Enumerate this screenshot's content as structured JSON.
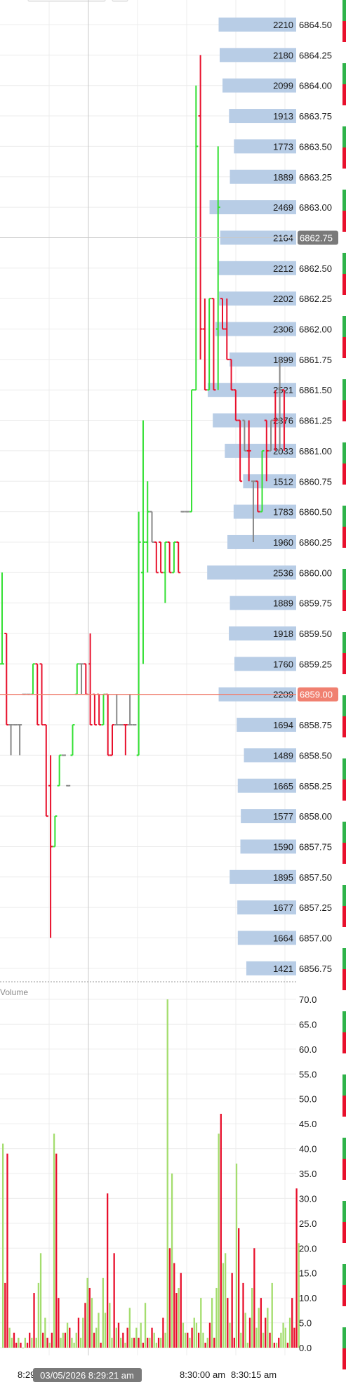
{
  "chart_data": [
    {
      "type": "price-ladder",
      "price_levels": [
        "6864.50",
        "6864.25",
        "6864.00",
        "6863.75",
        "6863.50",
        "6863.25",
        "6863.00",
        "6862.75",
        "6862.50",
        "6862.25",
        "6862.00",
        "6861.75",
        "6861.50",
        "6861.25",
        "6861.00",
        "6860.75",
        "6860.50",
        "6860.25",
        "6860.00",
        "6859.75",
        "6859.50",
        "6859.25",
        "6859.00",
        "6858.75",
        "6858.50",
        "6858.25",
        "6858.00",
        "6857.75",
        "6857.50",
        "6857.25",
        "6857.00",
        "6856.75"
      ],
      "volume_profile": [
        2210,
        2180,
        2099,
        1913,
        1773,
        1889,
        2469,
        2164,
        2212,
        2202,
        2306,
        1899,
        2521,
        2376,
        2033,
        1512,
        1783,
        1960,
        2536,
        1889,
        1918,
        1760,
        2209,
        1694,
        1489,
        1665,
        1577,
        1590,
        1895,
        1677,
        1664,
        1421
      ],
      "crosshair_price": "6862.75",
      "last_price": "6859.00",
      "price_range": [
        6856.75,
        6864.5
      ],
      "price_bars": [
        {
          "o": 6859.25,
          "h": 6860.0,
          "l": 6859.25,
          "c": 6859.25,
          "dir": "up"
        },
        {
          "o": 6859.5,
          "h": 6859.5,
          "l": 6858.75,
          "c": 6858.75,
          "dir": "down"
        },
        {
          "o": 6858.75,
          "h": 6858.75,
          "l": 6858.5,
          "c": 6858.75,
          "dir": "flat"
        },
        {
          "o": 6858.75,
          "h": 6858.75,
          "l": 6858.75,
          "c": 6858.75,
          "dir": "flat"
        },
        {
          "o": 6858.75,
          "h": 6858.75,
          "l": 6858.5,
          "c": 6858.75,
          "dir": "flat"
        },
        {
          "o": 6859.0,
          "h": 6859.0,
          "l": 6859.0,
          "c": 6859.0,
          "dir": "flat"
        },
        {
          "o": 6859.0,
          "h": 6859.0,
          "l": 6859.0,
          "c": 6859.0,
          "dir": "flat"
        },
        {
          "o": 6859.0,
          "h": 6859.25,
          "l": 6859.0,
          "c": 6859.25,
          "dir": "up"
        },
        {
          "o": 6859.25,
          "h": 6859.25,
          "l": 6858.75,
          "c": 6858.75,
          "dir": "down"
        },
        {
          "o": 6859.25,
          "h": 6859.25,
          "l": 6858.75,
          "c": 6858.75,
          "dir": "down"
        },
        {
          "o": 6858.75,
          "h": 6858.75,
          "l": 6858.0,
          "c": 6858.0,
          "dir": "down"
        },
        {
          "o": 6858.25,
          "h": 6858.5,
          "l": 6857.0,
          "c": 6857.75,
          "dir": "down"
        },
        {
          "o": 6857.75,
          "h": 6858.0,
          "l": 6857.75,
          "c": 6858.0,
          "dir": "up"
        },
        {
          "o": 6858.25,
          "h": 6858.5,
          "l": 6858.25,
          "c": 6858.5,
          "dir": "up"
        },
        {
          "o": 6858.5,
          "h": 6858.5,
          "l": 6858.5,
          "c": 6858.5,
          "dir": "flat"
        },
        {
          "o": 6858.25,
          "h": 6858.25,
          "l": 6858.25,
          "c": 6858.25,
          "dir": "flat"
        },
        {
          "o": 6858.5,
          "h": 6858.75,
          "l": 6858.5,
          "c": 6858.75,
          "dir": "up"
        },
        {
          "o": 6859.0,
          "h": 6859.25,
          "l": 6859.0,
          "c": 6859.25,
          "dir": "up"
        },
        {
          "o": 6859.25,
          "h": 6859.25,
          "l": 6859.0,
          "c": 6859.25,
          "dir": "flat"
        },
        {
          "o": 6859.25,
          "h": 6859.25,
          "l": 6859.0,
          "c": 6859.0,
          "dir": "down"
        },
        {
          "o": 6859.25,
          "h": 6859.5,
          "l": 6858.75,
          "c": 6858.75,
          "dir": "down"
        },
        {
          "o": 6859.0,
          "h": 6859.0,
          "l": 6858.75,
          "c": 6858.75,
          "dir": "down"
        },
        {
          "o": 6859.0,
          "h": 6859.0,
          "l": 6858.75,
          "c": 6858.75,
          "dir": "down"
        },
        {
          "o": 6858.75,
          "h": 6859.0,
          "l": 6858.75,
          "c": 6859.0,
          "dir": "up"
        },
        {
          "o": 6859.0,
          "h": 6859.0,
          "l": 6858.5,
          "c": 6858.5,
          "dir": "down"
        },
        {
          "o": 6858.5,
          "h": 6858.75,
          "l": 6858.5,
          "c": 6858.75,
          "dir": "down"
        },
        {
          "o": 6858.75,
          "h": 6859.0,
          "l": 6858.75,
          "c": 6858.75,
          "dir": "flat"
        },
        {
          "o": 6858.75,
          "h": 6858.75,
          "l": 6858.75,
          "c": 6858.75,
          "dir": "flat"
        },
        {
          "o": 6858.75,
          "h": 6858.75,
          "l": 6858.5,
          "c": 6858.75,
          "dir": "down"
        },
        {
          "o": 6858.75,
          "h": 6859.0,
          "l": 6858.75,
          "c": 6858.75,
          "dir": "flat"
        },
        {
          "o": 6858.75,
          "h": 6858.75,
          "l": 6858.75,
          "c": 6858.75,
          "dir": "flat"
        },
        {
          "o": 6858.5,
          "h": 6860.5,
          "l": 6858.5,
          "c": 6860.25,
          "dir": "up"
        },
        {
          "o": 6860.0,
          "h": 6861.25,
          "l": 6859.25,
          "c": 6860.25,
          "dir": "up"
        },
        {
          "o": 6860.25,
          "h": 6860.75,
          "l": 6860.0,
          "c": 6860.5,
          "dir": "up"
        },
        {
          "o": 6860.5,
          "h": 6860.5,
          "l": 6860.25,
          "c": 6860.25,
          "dir": "flat"
        },
        {
          "o": 6860.25,
          "h": 6860.25,
          "l": 6860.0,
          "c": 6860.0,
          "dir": "down"
        },
        {
          "o": 6860.25,
          "h": 6860.25,
          "l": 6860.0,
          "c": 6860.0,
          "dir": "down"
        },
        {
          "o": 6860.0,
          "h": 6860.25,
          "l": 6859.75,
          "c": 6860.25,
          "dir": "up"
        },
        {
          "o": 6860.25,
          "h": 6860.25,
          "l": 6860.0,
          "c": 6860.0,
          "dir": "down"
        },
        {
          "o": 6860.0,
          "h": 6860.25,
          "l": 6860.0,
          "c": 6860.25,
          "dir": "up"
        },
        {
          "o": 6860.25,
          "h": 6860.25,
          "l": 6860.0,
          "c": 6860.0,
          "dir": "down"
        },
        {
          "o": 6860.5,
          "h": 6860.5,
          "l": 6860.5,
          "c": 6860.5,
          "dir": "flat"
        },
        {
          "o": 6860.5,
          "h": 6860.5,
          "l": 6860.5,
          "c": 6860.5,
          "dir": "flat"
        },
        {
          "o": 6860.5,
          "h": 6861.5,
          "l": 6860.5,
          "c": 6861.5,
          "dir": "up"
        },
        {
          "o": 6861.5,
          "h": 6864.0,
          "l": 6861.5,
          "c": 6863.5,
          "dir": "up"
        },
        {
          "o": 6863.75,
          "h": 6864.25,
          "l": 6861.75,
          "c": 6862.0,
          "dir": "down"
        },
        {
          "o": 6862.0,
          "h": 6862.25,
          "l": 6861.5,
          "c": 6861.5,
          "dir": "down"
        },
        {
          "o": 6861.5,
          "h": 6862.25,
          "l": 6861.5,
          "c": 6862.25,
          "dir": "up"
        },
        {
          "o": 6862.25,
          "h": 6862.25,
          "l": 6861.5,
          "c": 6861.5,
          "dir": "down"
        },
        {
          "o": 6862.0,
          "h": 6863.5,
          "l": 6861.5,
          "c": 6863.0,
          "dir": "up"
        },
        {
          "o": 6862.25,
          "h": 6862.25,
          "l": 6862.0,
          "c": 6862.0,
          "dir": "down"
        },
        {
          "o": 6862.0,
          "h": 6862.25,
          "l": 6861.75,
          "c": 6861.75,
          "dir": "down"
        },
        {
          "o": 6861.75,
          "h": 6861.75,
          "l": 6861.5,
          "c": 6861.5,
          "dir": "down"
        },
        {
          "o": 6861.5,
          "h": 6861.5,
          "l": 6861.25,
          "c": 6861.25,
          "dir": "down"
        },
        {
          "o": 6861.25,
          "h": 6861.25,
          "l": 6860.75,
          "c": 6860.75,
          "dir": "down"
        },
        {
          "o": 6861.25,
          "h": 6861.25,
          "l": 6861.0,
          "c": 6861.0,
          "dir": "flat"
        },
        {
          "o": 6861.0,
          "h": 6861.25,
          "l": 6860.75,
          "c": 6861.0,
          "dir": "down"
        },
        {
          "o": 6860.75,
          "h": 6860.75,
          "l": 6860.25,
          "c": 6860.75,
          "dir": "flat"
        },
        {
          "o": 6860.75,
          "h": 6860.75,
          "l": 6860.5,
          "c": 6860.5,
          "dir": "down"
        },
        {
          "o": 6860.5,
          "h": 6861.0,
          "l": 6860.5,
          "c": 6861.0,
          "dir": "up"
        },
        {
          "o": 6861.25,
          "h": 6861.25,
          "l": 6860.75,
          "c": 6861.0,
          "dir": "down"
        },
        {
          "o": 6861.0,
          "h": 6861.25,
          "l": 6861.0,
          "c": 6861.25,
          "dir": "flat"
        },
        {
          "o": 6861.25,
          "h": 6861.5,
          "l": 6861.0,
          "c": 6861.25,
          "dir": "down"
        },
        {
          "o": 6861.25,
          "h": 6861.75,
          "l": 6861.0,
          "c": 6861.5,
          "dir": "flat"
        },
        {
          "o": 6861.5,
          "h": 6861.5,
          "l": 6861.0,
          "c": 6861.25,
          "dir": "down"
        }
      ]
    },
    {
      "type": "bar",
      "title": "Volume",
      "yticks": [
        "70.0",
        "65.0",
        "60.0",
        "55.0",
        "50.0",
        "45.0",
        "40.0",
        "35.0",
        "30.0",
        "25.0",
        "20.0",
        "15.0",
        "10.0",
        "5.0",
        "0.0"
      ],
      "ylim": [
        0,
        70
      ],
      "values": [
        41,
        13,
        39,
        4,
        2,
        3,
        1,
        2,
        1,
        0,
        2,
        1,
        3,
        2,
        11,
        2,
        13,
        19,
        3,
        6,
        2,
        1,
        3,
        43,
        39,
        10,
        2,
        3,
        3,
        5,
        4,
        2,
        1,
        3,
        6,
        2,
        6,
        9,
        14,
        12,
        10,
        3,
        4,
        7,
        1,
        14,
        7,
        31,
        9,
        2,
        19,
        4,
        5,
        2,
        3,
        1,
        4,
        8,
        2,
        2,
        4,
        2,
        5,
        1,
        9,
        2,
        2,
        4,
        3,
        1,
        2,
        2,
        6,
        3,
        70,
        20,
        35,
        17,
        11,
        12,
        15,
        5,
        3,
        3,
        2,
        4,
        6,
        5,
        3,
        10,
        3,
        1,
        2,
        5,
        10,
        2,
        12,
        43,
        47,
        17,
        19,
        10,
        5,
        15,
        2,
        37,
        24,
        3,
        13,
        7,
        1,
        6,
        12,
        20,
        4,
        8,
        10,
        3,
        6,
        8,
        3,
        13,
        1,
        1,
        2,
        3,
        5,
        4,
        1,
        6,
        10,
        4,
        32,
        21
      ],
      "dirs": [
        "up",
        "down",
        "down",
        "up",
        "up",
        "down",
        "down",
        "up",
        "down",
        "up",
        "up",
        "down",
        "down",
        "up",
        "down",
        "up",
        "up",
        "up",
        "down",
        "up",
        "down",
        "up",
        "down",
        "up",
        "down",
        "down",
        "up",
        "up",
        "down",
        "up",
        "down",
        "up",
        "up",
        "up",
        "down",
        "up",
        "up",
        "down",
        "up",
        "down",
        "up",
        "down",
        "up",
        "up",
        "down",
        "up",
        "up",
        "down",
        "up",
        "up",
        "down",
        "up",
        "down",
        "up",
        "down",
        "up",
        "down",
        "up",
        "up",
        "down",
        "up",
        "down",
        "up",
        "down",
        "up",
        "down",
        "up",
        "down",
        "up",
        "up",
        "down",
        "up",
        "down",
        "up",
        "up",
        "down",
        "up",
        "down",
        "down",
        "up",
        "down",
        "up",
        "up",
        "down",
        "up",
        "down",
        "up",
        "up",
        "down",
        "up",
        "up",
        "down",
        "up",
        "down",
        "up",
        "down",
        "up",
        "up",
        "down",
        "up",
        "up",
        "down",
        "up",
        "down",
        "down",
        "up",
        "down",
        "up",
        "down",
        "up",
        "up",
        "down",
        "up",
        "down",
        "up",
        "up",
        "down",
        "up",
        "down",
        "up",
        "down",
        "up",
        "down",
        "up",
        "down",
        "up",
        "up",
        "up",
        "down",
        "up",
        "down",
        "down",
        "down",
        "up"
      ]
    }
  ],
  "time_axis": {
    "labels": [
      "8:29",
      "8:30:00 am",
      "8:30:15 am"
    ],
    "crosshair_time": "03/05/2026 8:29:21 am"
  },
  "colors": {
    "up": "#33e033",
    "down": "#e8102c",
    "flat": "#888888",
    "volume_up": "#a4dd6e",
    "volume_down": "#e8102c",
    "volume_profile": "#b8cde6",
    "last_price_label": "#f08070",
    "crosshair_label": "#7a7a7a",
    "grid": "#ececec"
  },
  "icons": [
    "dropdown-arrow-icon",
    "trendline-icon",
    "text-tool-icon"
  ]
}
